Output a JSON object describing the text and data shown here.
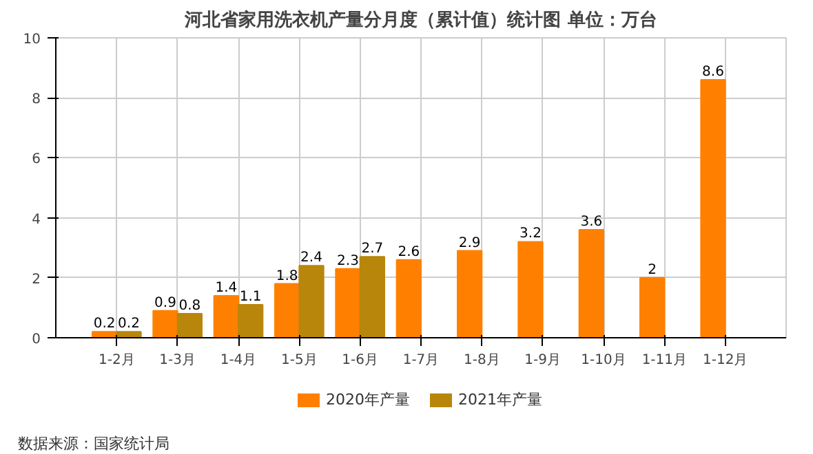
{
  "chart_data": {
    "type": "bar",
    "title": "河北省家用洗衣机产量分月度（累计值）统计图 单位：万台",
    "categories": [
      "1-2月",
      "1-3月",
      "1-4月",
      "1-5月",
      "1-6月",
      "1-7月",
      "1-8月",
      "1-9月",
      "1-10月",
      "1-11月",
      "1-12月"
    ],
    "series": [
      {
        "name": "2020年产量",
        "color": "#ff8000",
        "values": [
          0.2,
          0.9,
          1.4,
          1.8,
          2.3,
          2.6,
          2.9,
          3.2,
          3.6,
          2,
          8.6
        ]
      },
      {
        "name": "2021年产量",
        "color": "#b8860b",
        "values": [
          0.2,
          0.8,
          1.1,
          2.4,
          2.7,
          null,
          null,
          null,
          null,
          null,
          null
        ]
      }
    ],
    "ylim": [
      0,
      10
    ],
    "yticks": [
      0,
      2,
      4,
      6,
      8,
      10
    ],
    "grid": true,
    "legend": "bottom",
    "data_labels": true,
    "annotations": [
      "数据来源：国家统计局"
    ]
  }
}
